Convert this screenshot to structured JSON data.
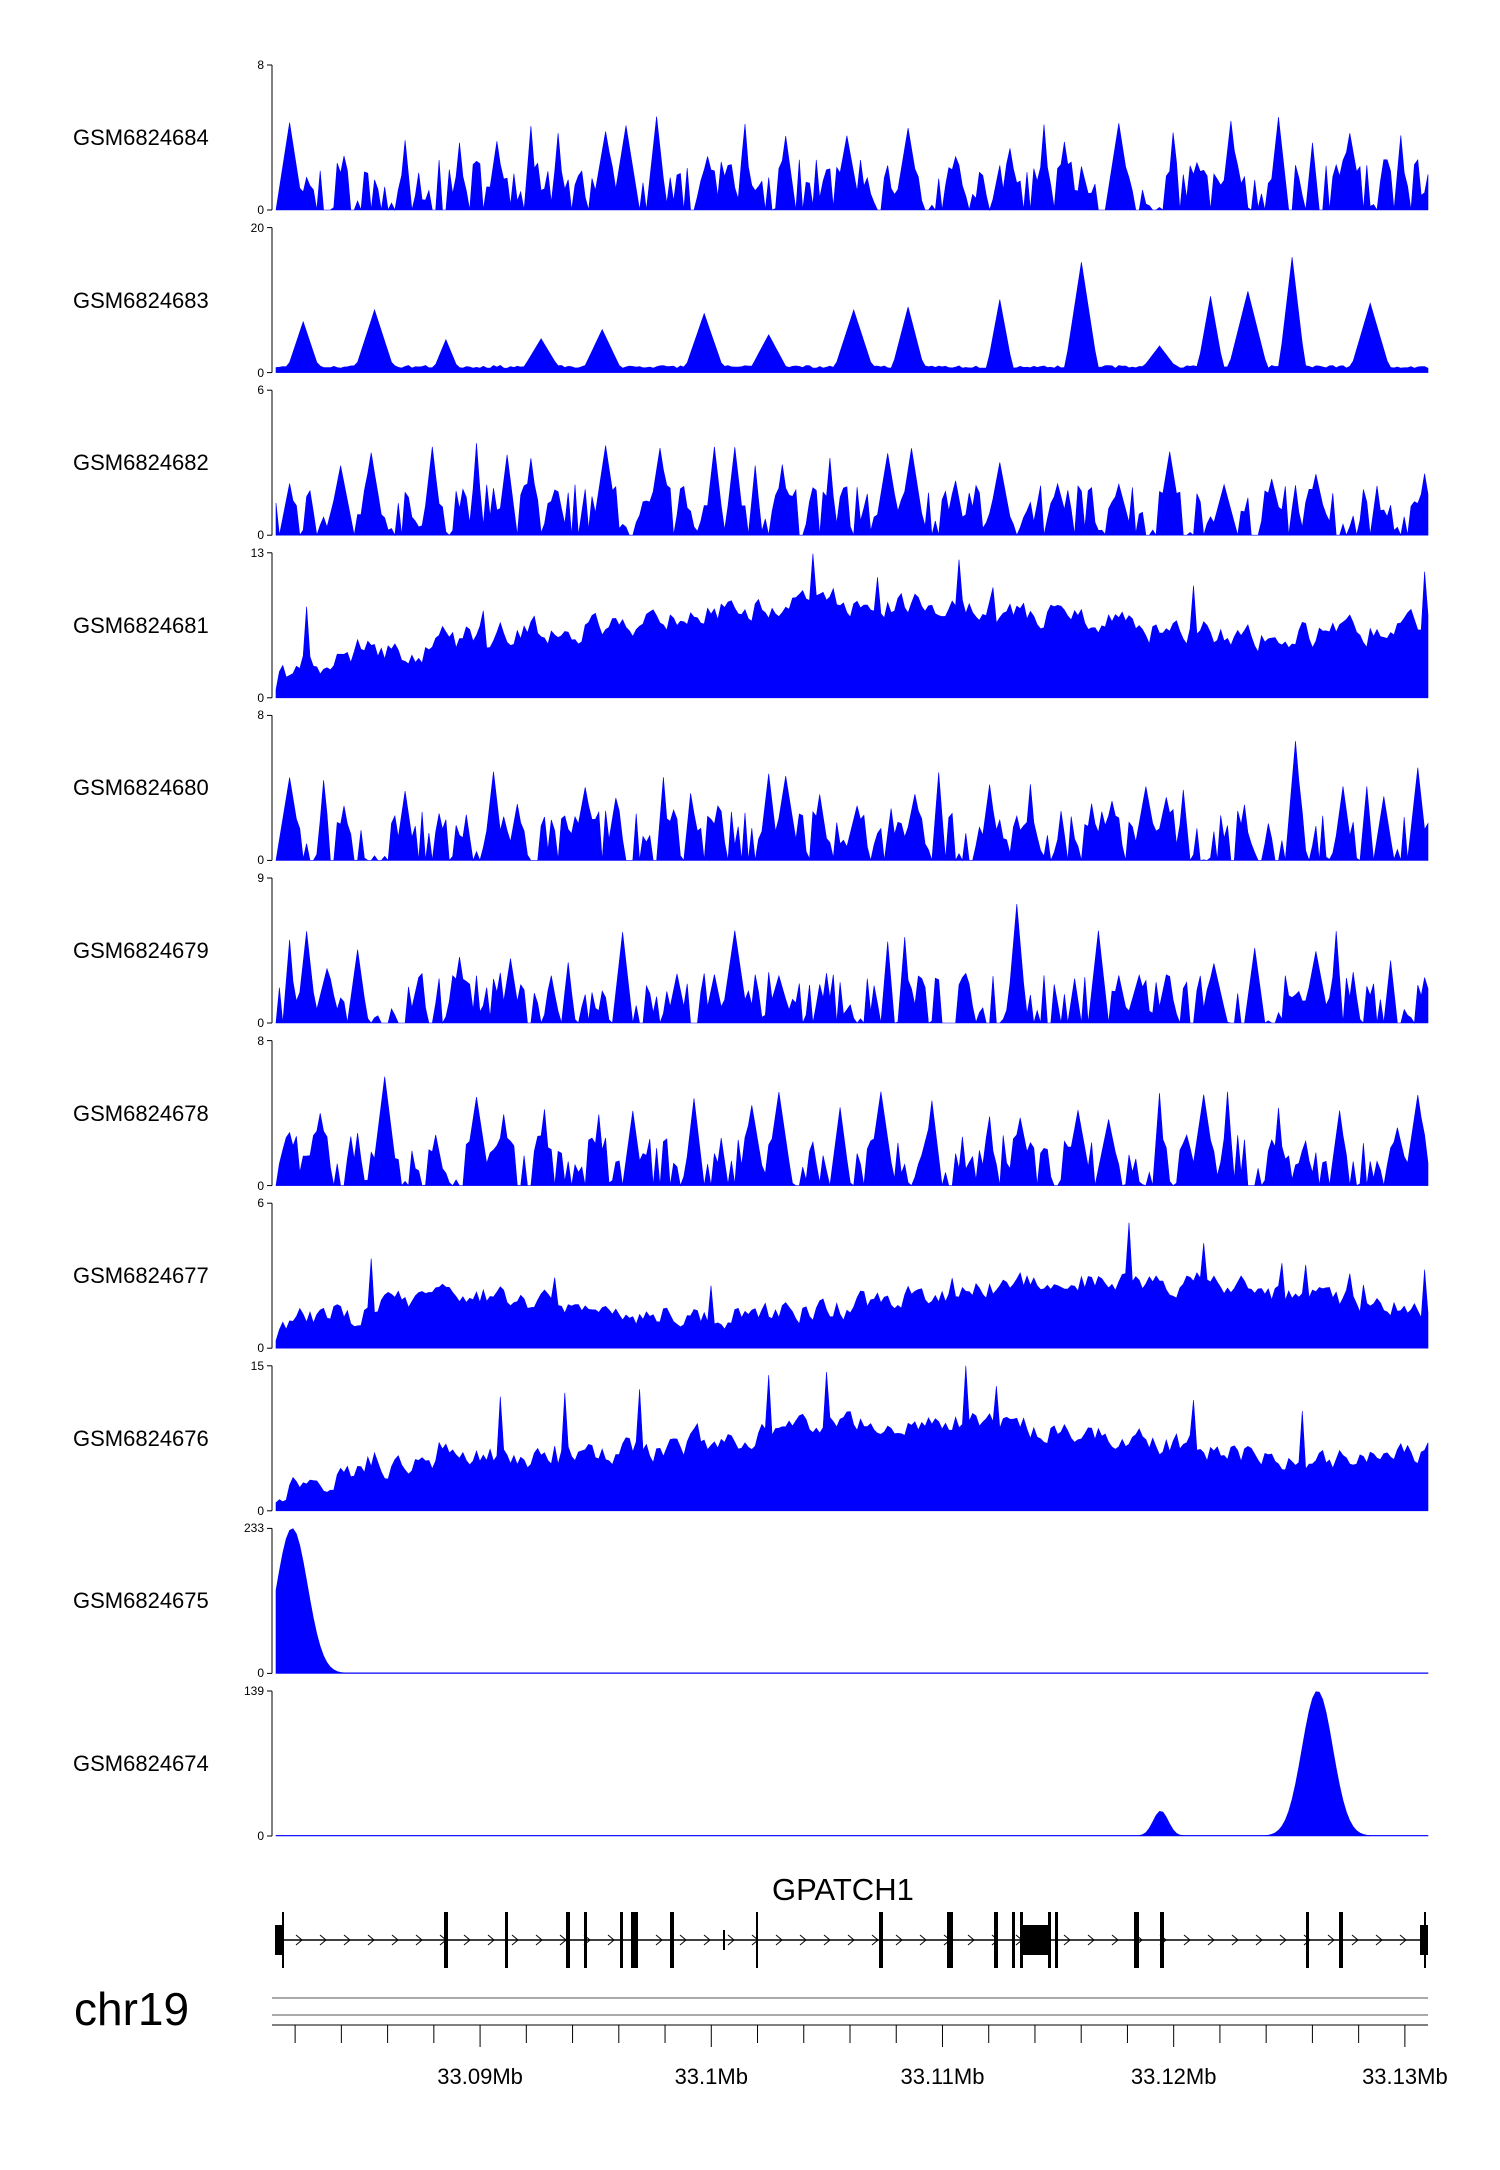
{
  "colors": {
    "signal": "#0000ff",
    "axis": "#000000"
  },
  "chart_data": {
    "type": "area",
    "chromosome": "chr19",
    "gene": {
      "name": "GPATCH1",
      "strand": "+"
    },
    "x_range_bp": [
      33081000,
      33131000
    ],
    "x_ticks": [
      {
        "pos": 33090000,
        "label": "33.09Mb"
      },
      {
        "pos": 33100000,
        "label": "33.1Mb"
      },
      {
        "pos": 33110000,
        "label": "33.11Mb"
      },
      {
        "pos": 33120000,
        "label": "33.12Mb"
      },
      {
        "pos": 33130000,
        "label": "33.13Mb"
      }
    ],
    "tracks": [
      {
        "name": "GSM6824684",
        "ymin": 0,
        "ymax": 8
      },
      {
        "name": "GSM6824683",
        "ymin": 0,
        "ymax": 20
      },
      {
        "name": "GSM6824682",
        "ymin": 0,
        "ymax": 6
      },
      {
        "name": "GSM6824681",
        "ymin": 0,
        "ymax": 13
      },
      {
        "name": "GSM6824680",
        "ymin": 0,
        "ymax": 8
      },
      {
        "name": "GSM6824679",
        "ymin": 0,
        "ymax": 9
      },
      {
        "name": "GSM6824678",
        "ymin": 0,
        "ymax": 8
      },
      {
        "name": "GSM6824677",
        "ymin": 0,
        "ymax": 6
      },
      {
        "name": "GSM6824676",
        "ymin": 0,
        "ymax": 15
      },
      {
        "name": "GSM6824675",
        "ymin": 0,
        "ymax": 233,
        "peaks": [
          {
            "pos": 33081700,
            "value": 233
          }
        ]
      },
      {
        "name": "GSM6824674",
        "ymin": 0,
        "ymax": 139,
        "peaks": [
          {
            "pos": 33119400,
            "value": 24
          },
          {
            "pos": 33126200,
            "value": 139
          }
        ]
      }
    ]
  }
}
